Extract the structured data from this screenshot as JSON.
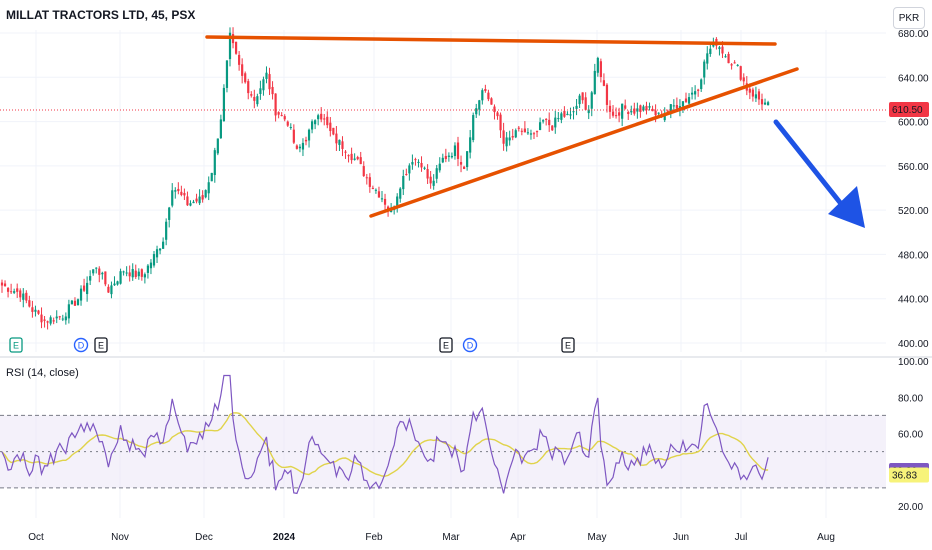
{
  "header": {
    "title": "MILLAT TRACTORS LTD, 45, PSX",
    "currency": "PKR"
  },
  "colors": {
    "up": "#089981",
    "down": "#f23645",
    "trend": "#e65100",
    "arrow": "#1e53e5",
    "rsi": "#7e57c2",
    "rsi_ma": "#e0d34a",
    "band": "#ede7f6"
  },
  "chart_data": [
    {
      "type": "candlestick",
      "title": "MILLAT TRACTORS LTD, 45, PSX",
      "y_ticks": [
        400,
        440,
        480,
        520,
        560,
        600,
        640,
        680
      ],
      "y_tick_labels": [
        "400.00",
        "440.00",
        "480.00",
        "520.00",
        "560.00",
        "600.00",
        "640.00",
        "680.00"
      ],
      "ylim": [
        390,
        688
      ],
      "x_labels": [
        "Oct",
        "Nov",
        "Dec",
        "2024",
        "Feb",
        "Mar",
        "Apr",
        "May",
        "Jun",
        "Jul",
        "Aug"
      ],
      "last_price": 610.5,
      "last_price_label": "610.50",
      "keypoints": [
        [
          0,
          452
        ],
        [
          6,
          445
        ],
        [
          10,
          430
        ],
        [
          14,
          420
        ],
        [
          20,
          425
        ],
        [
          25,
          440
        ],
        [
          31,
          470
        ],
        [
          35,
          448
        ],
        [
          40,
          466
        ],
        [
          46,
          460
        ],
        [
          50,
          478
        ],
        [
          53,
          494
        ],
        [
          56,
          542
        ],
        [
          61,
          526
        ],
        [
          66,
          530
        ],
        [
          69,
          556
        ],
        [
          72,
          604
        ],
        [
          75,
          676
        ],
        [
          79,
          640
        ],
        [
          83,
          620
        ],
        [
          87,
          642
        ],
        [
          90,
          610
        ],
        [
          94,
          600
        ],
        [
          97,
          572
        ],
        [
          101,
          590
        ],
        [
          104,
          610
        ],
        [
          109,
          585
        ],
        [
          113,
          576
        ],
        [
          117,
          563
        ],
        [
          121,
          545
        ],
        [
          125,
          532
        ],
        [
          128,
          518
        ],
        [
          131,
          544
        ],
        [
          135,
          567
        ],
        [
          138,
          563
        ],
        [
          141,
          542
        ],
        [
          145,
          566
        ],
        [
          149,
          575
        ],
        [
          152,
          560
        ],
        [
          155,
          605
        ],
        [
          158,
          628
        ],
        [
          162,
          612
        ],
        [
          165,
          580
        ],
        [
          168,
          586
        ],
        [
          171,
          592
        ],
        [
          175,
          585
        ],
        [
          178,
          600
        ],
        [
          181,
          596
        ],
        [
          184,
          606
        ],
        [
          187,
          604
        ],
        [
          190,
          620
        ],
        [
          193,
          612
        ],
        [
          196,
          656
        ],
        [
          199,
          618
        ],
        [
          201,
          605
        ],
        [
          204,
          612
        ],
        [
          208,
          610
        ],
        [
          212,
          612
        ],
        [
          216,
          605
        ],
        [
          221,
          614
        ],
        [
          225,
          620
        ],
        [
          229,
          632
        ],
        [
          232,
          662
        ],
        [
          235,
          672
        ],
        [
          238,
          660
        ],
        [
          242,
          648
        ],
        [
          245,
          630
        ],
        [
          249,
          620
        ],
        [
          252,
          614
        ]
      ],
      "candle_count": 253
    },
    {
      "type": "line",
      "title": "RSI (14, close)",
      "y_ticks": [
        20,
        40,
        60,
        80,
        100
      ],
      "y_tick_labels": [
        "20.00",
        "40.00",
        "60.00",
        "80.00",
        "100.00"
      ],
      "ylim": [
        16,
        100
      ],
      "bands": [
        30,
        50,
        70
      ],
      "series": [
        {
          "value": 39.3,
          "value_label": "39.30"
        },
        {
          "value": 36.83,
          "value_label": "36.83"
        }
      ]
    }
  ],
  "events": [
    {
      "label": "E",
      "kind": "earnings-up"
    },
    {
      "label": "D",
      "kind": "dividend"
    },
    {
      "label": "E",
      "kind": "earnings"
    },
    {
      "label": "E",
      "kind": "earnings"
    },
    {
      "label": "D",
      "kind": "dividend"
    },
    {
      "label": "E",
      "kind": "earnings"
    }
  ]
}
